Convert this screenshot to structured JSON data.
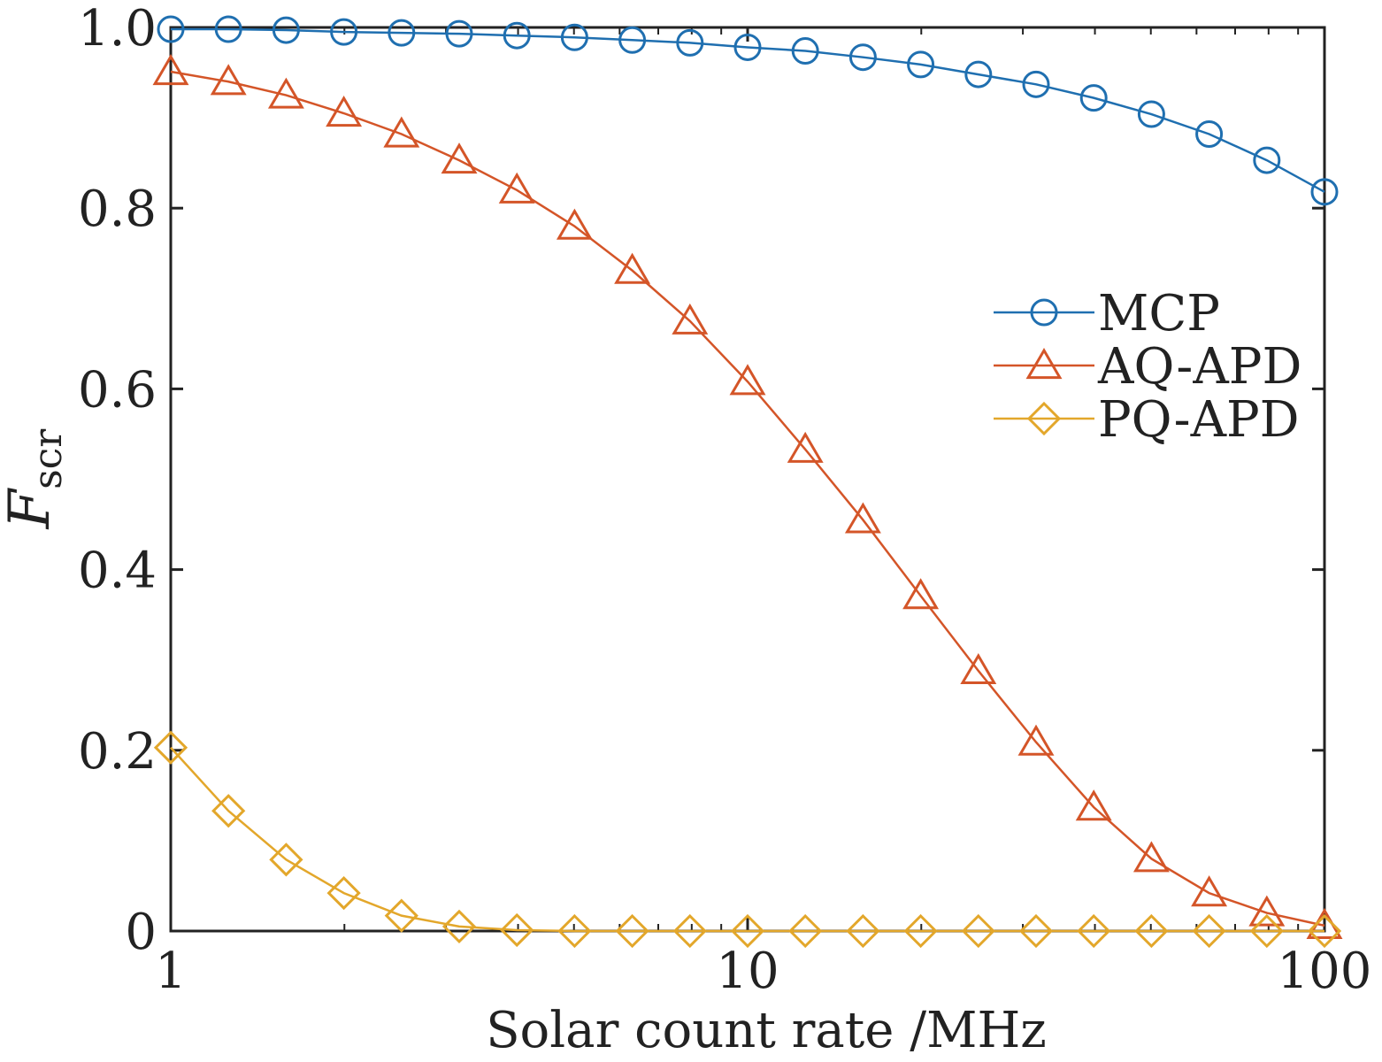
{
  "chart_data": {
    "type": "line",
    "xscale": "log",
    "xlim": [
      1,
      100
    ],
    "ylim": [
      0,
      1
    ],
    "xlabel": "Solar count rate /MHz",
    "ylabel": {
      "main": "F",
      "sub": "scr"
    },
    "x_ticks": [
      1,
      10,
      100
    ],
    "x_tick_labels": [
      "1",
      "10",
      "100"
    ],
    "y_ticks": [
      0,
      0.2,
      0.4,
      0.6,
      0.8,
      1.0
    ],
    "y_tick_labels": [
      "0",
      "0.2",
      "0.4",
      "0.6",
      "0.8",
      "1.0"
    ],
    "grid": false,
    "legend_position": "right",
    "x": [
      1,
      1.2589,
      1.5849,
      1.9953,
      2.5119,
      3.1623,
      3.9811,
      5.0119,
      6.3096,
      7.9433,
      10,
      12.589,
      15.849,
      19.953,
      25.119,
      31.623,
      39.811,
      50.119,
      63.096,
      79.433,
      100
    ],
    "series": [
      {
        "name": "MCP",
        "color": "#1f6fb0",
        "marker": "circle",
        "values": [
          0.998,
          0.998,
          0.997,
          0.995,
          0.994,
          0.993,
          0.991,
          0.989,
          0.986,
          0.983,
          0.978,
          0.974,
          0.967,
          0.959,
          0.948,
          0.937,
          0.922,
          0.904,
          0.882,
          0.853,
          0.818
        ]
      },
      {
        "name": "AQ-APD",
        "color": "#d45528",
        "marker": "triangle",
        "values": [
          0.951,
          0.94,
          0.925,
          0.905,
          0.882,
          0.853,
          0.82,
          0.78,
          0.731,
          0.675,
          0.608,
          0.533,
          0.455,
          0.371,
          0.288,
          0.209,
          0.137,
          0.08,
          0.042,
          0.02,
          0.006
        ]
      },
      {
        "name": "PQ-APD",
        "color": "#e3a72b",
        "marker": "diamond",
        "values": [
          0.203,
          0.133,
          0.079,
          0.042,
          0.017,
          0.005,
          0.001,
          0,
          0,
          0,
          0,
          0,
          0,
          0,
          0,
          0,
          0,
          0,
          0,
          0,
          0
        ]
      }
    ]
  }
}
